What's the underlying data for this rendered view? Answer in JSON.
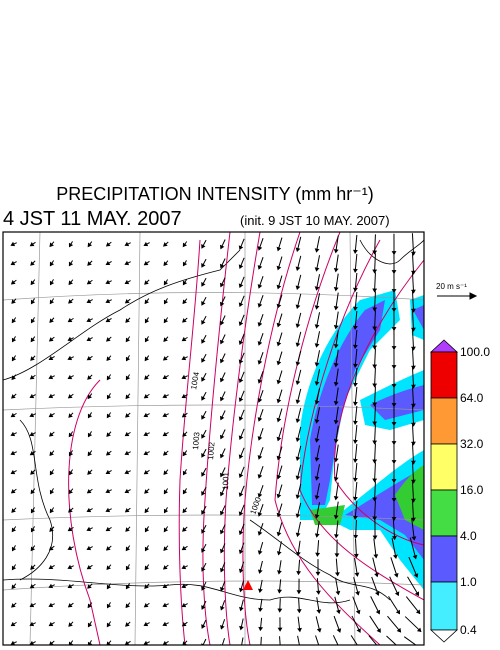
{
  "header": {
    "title": "PRECIPITATION INTENSITY (mm hr⁻¹)",
    "valid_time": "4 JST 11 MAY. 2007",
    "init_time": "(init. 9 JST 10 MAY. 2007)"
  },
  "reference_vector": {
    "label": "20 m s⁻¹"
  },
  "colorbar": {
    "labels": [
      "100.0",
      "64.0",
      "32.0",
      "16.0",
      "4.0",
      "1.0",
      "0.4"
    ]
  },
  "isobar_labels": [
    "1004",
    "1003",
    "1002",
    "1001",
    "1000"
  ]
}
